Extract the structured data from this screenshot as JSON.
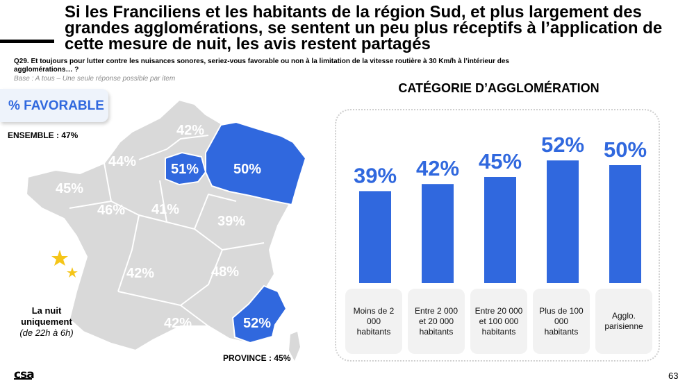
{
  "title": "Si les Franciliens et les habitants de la région Sud, et plus largement des grandes agglomérations, se sentent un peu plus réceptifs à l’application de cette mesure de nuit, les avis restent partagés",
  "question": "Q29. Et toujours pour lutter contre les nuisances sonores, seriez-vous favorable ou non à la limitation de la vitesse routière à 30 Km/h à l’intérieur des agglomérations… ?",
  "base": "Base : A tous – Une seule réponse possible par item",
  "favorable_label": "% FAVORABLE",
  "ensemble": "ENSEMBLE : 47%",
  "province": "PROVINCE : 45%",
  "night": {
    "line1": "La nuit uniquement",
    "line2": "(de 22h à 6h)"
  },
  "map_regions": {
    "nord": "42%",
    "nord_ouest": "44%",
    "ouest": "45%",
    "centre_ouest": "46%",
    "centre": "41%",
    "ile_de_france": "51%",
    "est": "50%",
    "centre_est": "39%",
    "sud_ouest": "42%",
    "sud_est": "48%",
    "sud": "42%",
    "region_sud": "52%"
  },
  "colors": {
    "accent": "#3068de",
    "map_grey": "#d9d9d9",
    "highlight": "#3068de",
    "moon": "#f5c518"
  },
  "chart_data": {
    "type": "bar",
    "title": "CATÉGORIE D’AGGLOMÉRATION",
    "categories": [
      "Moins de 2 000 habitants",
      "Entre 2 000 et 20 000 habitants",
      "Entre 20 000 et 100 000 habitants",
      "Plus de 100 000 habitants",
      "Agglo. parisienne"
    ],
    "values": [
      39,
      42,
      45,
      52,
      50
    ],
    "value_labels": [
      "39%",
      "42%",
      "45%",
      "52%",
      "50%"
    ],
    "ylim": [
      0,
      60
    ],
    "grid": false,
    "legend": "none"
  },
  "category_labels": {
    "c0": "Moins de 2 000 habitants",
    "c1": "Entre 2 000 et 20 000 habitants",
    "c2": "Entre 20 000 et 100 000 habitants",
    "c3": "Plus de 100 000 habitants",
    "c4": "Agglo. parisienne"
  },
  "logo": "csa",
  "page_number": "63"
}
